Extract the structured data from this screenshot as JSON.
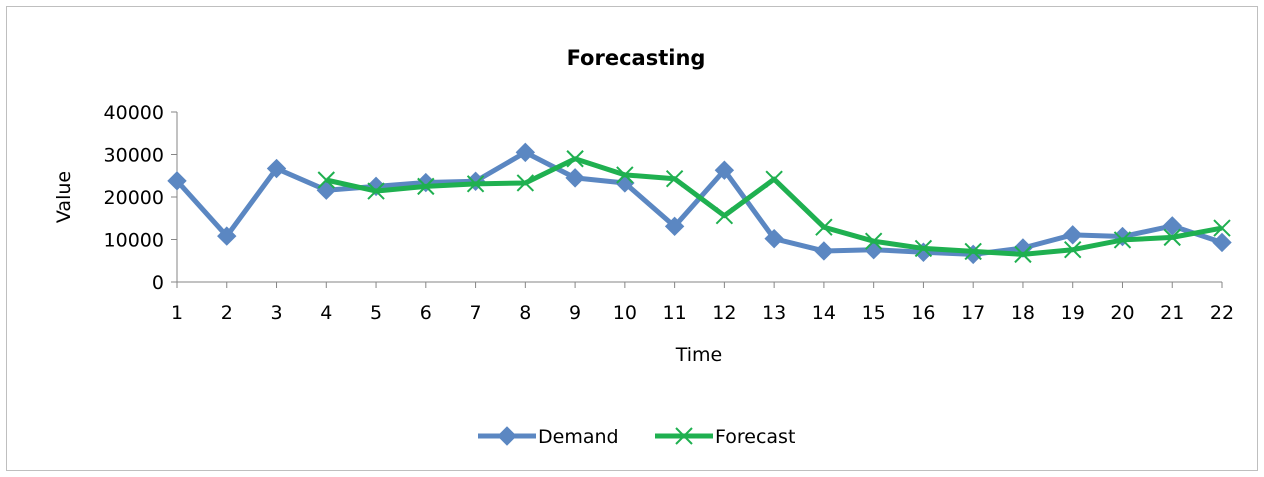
{
  "chart_data": {
    "type": "line",
    "title": "Forecasting",
    "xlabel": "Time",
    "ylabel": "Value",
    "ylim": [
      0,
      40000
    ],
    "yticks": [
      0,
      10000,
      20000,
      30000,
      40000
    ],
    "x": [
      1,
      2,
      3,
      4,
      5,
      6,
      7,
      8,
      9,
      10,
      11,
      12,
      13,
      14,
      15,
      16,
      17,
      18,
      19,
      20,
      21,
      22
    ],
    "grid": false,
    "legend_position": "bottom",
    "series": [
      {
        "name": "Demand",
        "color": "#5b87c2",
        "marker": "diamond",
        "values": [
          23800,
          10800,
          26700,
          21600,
          22500,
          23400,
          23700,
          30500,
          24500,
          23300,
          13100,
          26300,
          10200,
          7300,
          7600,
          7000,
          6500,
          8000,
          11100,
          10700,
          13200,
          9300
        ]
      },
      {
        "name": "Forecast",
        "color": "#1fb050",
        "marker": "x",
        "values": [
          null,
          null,
          null,
          24000,
          21400,
          22500,
          23100,
          23300,
          29000,
          25200,
          24300,
          15600,
          24200,
          12900,
          9600,
          7900,
          7200,
          6500,
          7600,
          9900,
          10500,
          12700
        ]
      }
    ]
  }
}
